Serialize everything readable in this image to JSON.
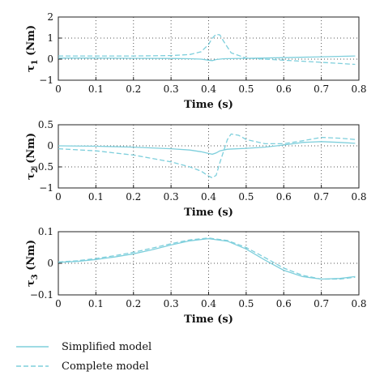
{
  "chart_data": [
    {
      "type": "line",
      "ylabel": "τ1 (Nm)",
      "ylabel_symbol": "τ",
      "ylabel_sub": "1",
      "ylabel_unit": " (Nm)",
      "xlabel": "Time (s)",
      "xlim": [
        0,
        0.8
      ],
      "ylim": [
        -1,
        2
      ],
      "xticks": [
        "0",
        "0.1",
        "0.2",
        "0.3",
        "0.4",
        "0.5",
        "0.6",
        "0.7",
        "0.8"
      ],
      "yticks": [
        "−1",
        "0",
        "1",
        "2"
      ],
      "ytick_values": [
        -1,
        0,
        1,
        2
      ],
      "grid": true,
      "series": [
        {
          "name": "Simplified model",
          "style": "solid",
          "x": [
            0,
            0.1,
            0.2,
            0.3,
            0.35,
            0.38,
            0.4,
            0.41,
            0.42,
            0.44,
            0.5,
            0.6,
            0.7,
            0.79
          ],
          "y": [
            0.05,
            0.05,
            0.04,
            0.03,
            0.02,
            0.0,
            -0.05,
            -0.07,
            -0.02,
            0.02,
            0.04,
            0.07,
            0.11,
            0.15
          ]
        },
        {
          "name": "Complete model",
          "style": "dashed",
          "x": [
            0,
            0.1,
            0.2,
            0.3,
            0.35,
            0.38,
            0.4,
            0.41,
            0.42,
            0.43,
            0.44,
            0.46,
            0.5,
            0.6,
            0.7,
            0.79
          ],
          "y": [
            0.15,
            0.15,
            0.15,
            0.17,
            0.22,
            0.35,
            0.7,
            1.0,
            1.18,
            1.15,
            0.85,
            0.3,
            0.05,
            -0.05,
            -0.15,
            -0.25
          ]
        }
      ]
    },
    {
      "type": "line",
      "ylabel": "τ2 (Nm)",
      "ylabel_symbol": "τ",
      "ylabel_sub": "2",
      "ylabel_unit": " (Nm)",
      "xlabel": "Time (s)",
      "xlim": [
        0,
        0.8
      ],
      "ylim": [
        -1,
        0.5
      ],
      "xticks": [
        "0",
        "0.1",
        "0.2",
        "0.3",
        "0.4",
        "0.5",
        "0.6",
        "0.7",
        "0.8"
      ],
      "yticks": [
        "−1",
        "−0.5",
        "0",
        "0.5"
      ],
      "ytick_values": [
        -1,
        -0.5,
        0,
        0.5
      ],
      "grid": true,
      "series": [
        {
          "name": "Simplified model",
          "style": "solid",
          "x": [
            0,
            0.1,
            0.2,
            0.3,
            0.35,
            0.38,
            0.4,
            0.41,
            0.42,
            0.43,
            0.45,
            0.5,
            0.55,
            0.6,
            0.65,
            0.7,
            0.75,
            0.79
          ],
          "y": [
            0.0,
            -0.01,
            -0.03,
            -0.07,
            -0.1,
            -0.14,
            -0.18,
            -0.2,
            -0.17,
            -0.12,
            -0.08,
            -0.06,
            -0.03,
            0.02,
            0.08,
            0.1,
            0.08,
            0.06
          ]
        },
        {
          "name": "Complete model",
          "style": "dashed",
          "x": [
            0,
            0.1,
            0.2,
            0.3,
            0.35,
            0.38,
            0.4,
            0.41,
            0.42,
            0.43,
            0.45,
            0.46,
            0.48,
            0.5,
            0.55,
            0.6,
            0.65,
            0.7,
            0.75,
            0.79
          ],
          "y": [
            -0.07,
            -0.12,
            -0.22,
            -0.38,
            -0.5,
            -0.6,
            -0.72,
            -0.76,
            -0.7,
            -0.4,
            0.15,
            0.28,
            0.25,
            0.15,
            0.05,
            0.05,
            0.12,
            0.2,
            0.18,
            0.15
          ]
        }
      ]
    },
    {
      "type": "line",
      "ylabel": "τ3 (Nm)",
      "ylabel_symbol": "τ",
      "ylabel_sub": "3",
      "ylabel_unit": " (Nm)",
      "xlabel": "Time (s)",
      "xlim": [
        0,
        0.8
      ],
      "ylim": [
        -0.1,
        0.1
      ],
      "xticks": [
        "0",
        "0.1",
        "0.2",
        "0.3",
        "0.4",
        "0.5",
        "0.6",
        "0.7",
        "0.8"
      ],
      "yticks": [
        "−0.1",
        "0",
        "0.1"
      ],
      "ytick_values": [
        -0.1,
        0,
        0.1
      ],
      "grid": true,
      "series": [
        {
          "name": "Simplified model",
          "style": "solid",
          "x": [
            0,
            0.05,
            0.1,
            0.15,
            0.2,
            0.25,
            0.3,
            0.35,
            0.4,
            0.45,
            0.5,
            0.55,
            0.6,
            0.65,
            0.7,
            0.75,
            0.79
          ],
          "y": [
            0.003,
            0.006,
            0.012,
            0.02,
            0.03,
            0.043,
            0.058,
            0.071,
            0.078,
            0.07,
            0.045,
            0.01,
            -0.022,
            -0.042,
            -0.05,
            -0.048,
            -0.042
          ]
        },
        {
          "name": "Complete model",
          "style": "dashed",
          "x": [
            0,
            0.05,
            0.1,
            0.15,
            0.2,
            0.25,
            0.3,
            0.35,
            0.4,
            0.45,
            0.5,
            0.55,
            0.6,
            0.65,
            0.7,
            0.75,
            0.79
          ],
          "y": [
            0.004,
            0.008,
            0.015,
            0.024,
            0.035,
            0.048,
            0.062,
            0.074,
            0.08,
            0.072,
            0.05,
            0.018,
            -0.015,
            -0.038,
            -0.05,
            -0.05,
            -0.044
          ]
        }
      ]
    }
  ],
  "legend": {
    "placement": "bottom-left",
    "items": [
      {
        "label": "Simplified model",
        "style": "solid"
      },
      {
        "label": "Complete model",
        "style": "dashed"
      }
    ]
  },
  "colors": {
    "series": "#7ecfdc",
    "axis": "#222222",
    "grid": "#555555"
  }
}
